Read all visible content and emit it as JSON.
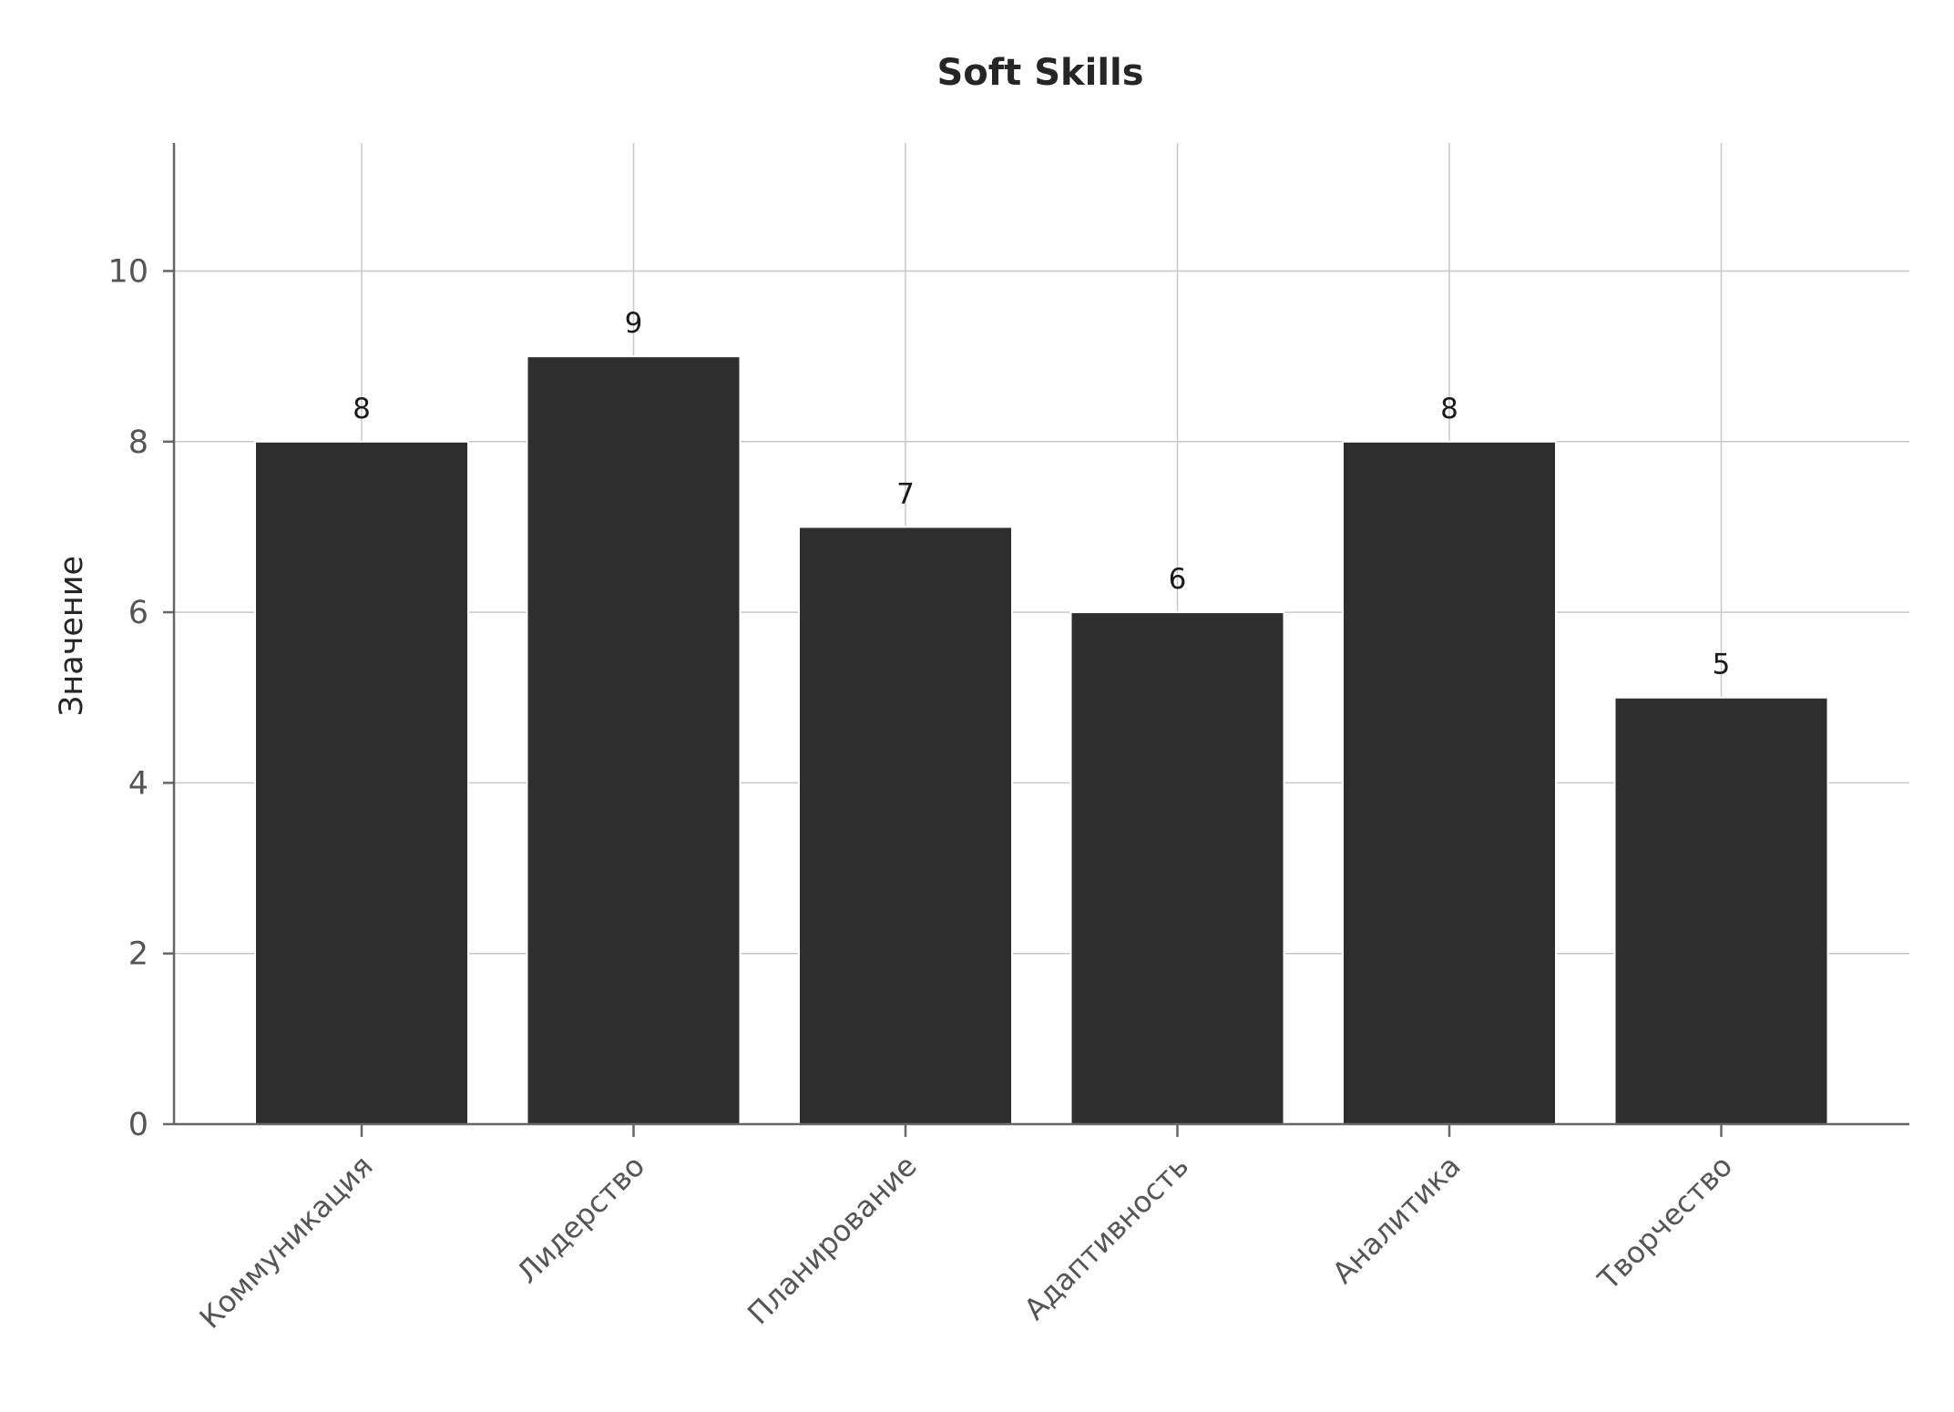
{
  "chart_data": {
    "type": "bar",
    "title": "Soft Skills",
    "xlabel": "",
    "ylabel": "Значение",
    "categories": [
      "Коммуникация",
      "Лидерство",
      "Планирование",
      "Адаптивность",
      "Аналитика",
      "Творчество"
    ],
    "values": [
      8,
      9,
      7,
      6,
      8,
      5
    ],
    "data_labels": [
      "8",
      "9",
      "7",
      "6",
      "8",
      "5"
    ],
    "ylim": [
      0,
      11.5
    ],
    "yticks": [
      0,
      2,
      4,
      6,
      8,
      10
    ],
    "grid": true,
    "legend": "none",
    "colors": {
      "bar": "#2e2e2e",
      "grid": "#c8c8c8",
      "axis": "#666666",
      "tick_label": "#555555",
      "title": "#262626"
    }
  }
}
